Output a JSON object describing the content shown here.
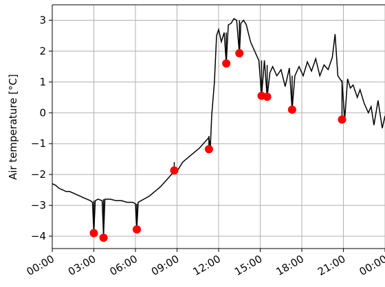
{
  "chart_data": {
    "type": "line",
    "title": "",
    "xlabel": "",
    "ylabel": "Air temperature [°C]",
    "x_ticks": [
      "00:00",
      "03:00",
      "06:00",
      "09:00",
      "12:00",
      "15:00",
      "18:00",
      "21:00",
      "00:00"
    ],
    "y_ticks": [
      3,
      2,
      1,
      0,
      -1,
      -2,
      -3,
      -4
    ],
    "y_tick_labels": [
      "3",
      "2",
      "1",
      "0",
      "−1",
      "−2",
      "−3",
      "−4"
    ],
    "xlim_hours": [
      0,
      24
    ],
    "ylim": [
      -4.4,
      3.5
    ],
    "grid": true,
    "series": [
      {
        "kind": "line",
        "color": "#000000",
        "x_hours": [
          0.0,
          0.25,
          0.5,
          0.75,
          1.0,
          1.25,
          1.5,
          1.75,
          2.0,
          2.25,
          2.5,
          2.75,
          2.9,
          3.0,
          3.1,
          3.3,
          3.6,
          3.7,
          3.8,
          4.2,
          4.6,
          5.0,
          5.4,
          5.8,
          6.0,
          6.1,
          6.2,
          6.6,
          7.0,
          7.4,
          7.8,
          8.2,
          8.6,
          8.8,
          9.0,
          9.4,
          9.8,
          10.2,
          10.6,
          11.0,
          11.3,
          11.4,
          11.5,
          11.7,
          11.85,
          12.0,
          12.2,
          12.4,
          12.55,
          12.7,
          12.9,
          13.1,
          13.3,
          13.5,
          13.6,
          13.8,
          14.0,
          14.3,
          14.6,
          14.9,
          15.1,
          15.3,
          15.5,
          15.7,
          15.9,
          16.2,
          16.5,
          16.8,
          17.1,
          17.3,
          17.5,
          17.8,
          18.1,
          18.4,
          18.7,
          19.0,
          19.3,
          19.6,
          19.9,
          20.2,
          20.4,
          20.6,
          20.9,
          21.1,
          21.3,
          21.5,
          21.7,
          22.0,
          22.2,
          22.5,
          22.8,
          23.0,
          23.2,
          23.5,
          23.8,
          24.0
        ],
        "values": [
          -2.3,
          -2.35,
          -2.45,
          -2.5,
          -2.55,
          -2.55,
          -2.6,
          -2.65,
          -2.7,
          -2.75,
          -2.8,
          -2.85,
          -2.9,
          -3.9,
          -2.85,
          -2.8,
          -2.85,
          -4.0,
          -2.8,
          -2.8,
          -2.85,
          -2.85,
          -2.9,
          -2.9,
          -2.95,
          -3.75,
          -2.9,
          -2.8,
          -2.7,
          -2.55,
          -2.4,
          -2.2,
          -2.0,
          -1.85,
          -1.9,
          -1.6,
          -1.45,
          -1.3,
          -1.15,
          -0.95,
          -0.8,
          -1.15,
          -0.1,
          1.0,
          2.5,
          2.7,
          2.3,
          2.6,
          1.6,
          2.85,
          2.9,
          3.05,
          3.0,
          1.9,
          2.9,
          3.0,
          2.85,
          2.3,
          2.0,
          1.7,
          0.55,
          1.7,
          0.5,
          1.3,
          1.5,
          1.2,
          1.4,
          0.85,
          1.45,
          0.1,
          1.2,
          1.5,
          1.2,
          1.65,
          1.35,
          1.75,
          1.2,
          1.55,
          1.4,
          1.8,
          2.55,
          1.2,
          1.0,
          -0.2,
          1.1,
          0.8,
          0.9,
          0.5,
          0.75,
          0.3,
          0.0,
          0.2,
          -0.4,
          0.4,
          -0.5,
          -0.1
        ]
      },
      {
        "kind": "markers",
        "color": "#ff0000",
        "x_hours": [
          3.0,
          3.7,
          6.1,
          8.8,
          11.3,
          12.55,
          13.5,
          15.1,
          15.5,
          17.3,
          20.9
        ],
        "values": [
          -3.9,
          -4.05,
          -3.78,
          -1.87,
          -1.18,
          1.6,
          1.93,
          0.55,
          0.52,
          0.1,
          -0.22
        ],
        "stems_to": [
          -2.85,
          -2.8,
          -2.95,
          -1.6,
          -0.75,
          2.6,
          3.0,
          1.7,
          1.55,
          1.2,
          1.05
        ]
      }
    ]
  }
}
